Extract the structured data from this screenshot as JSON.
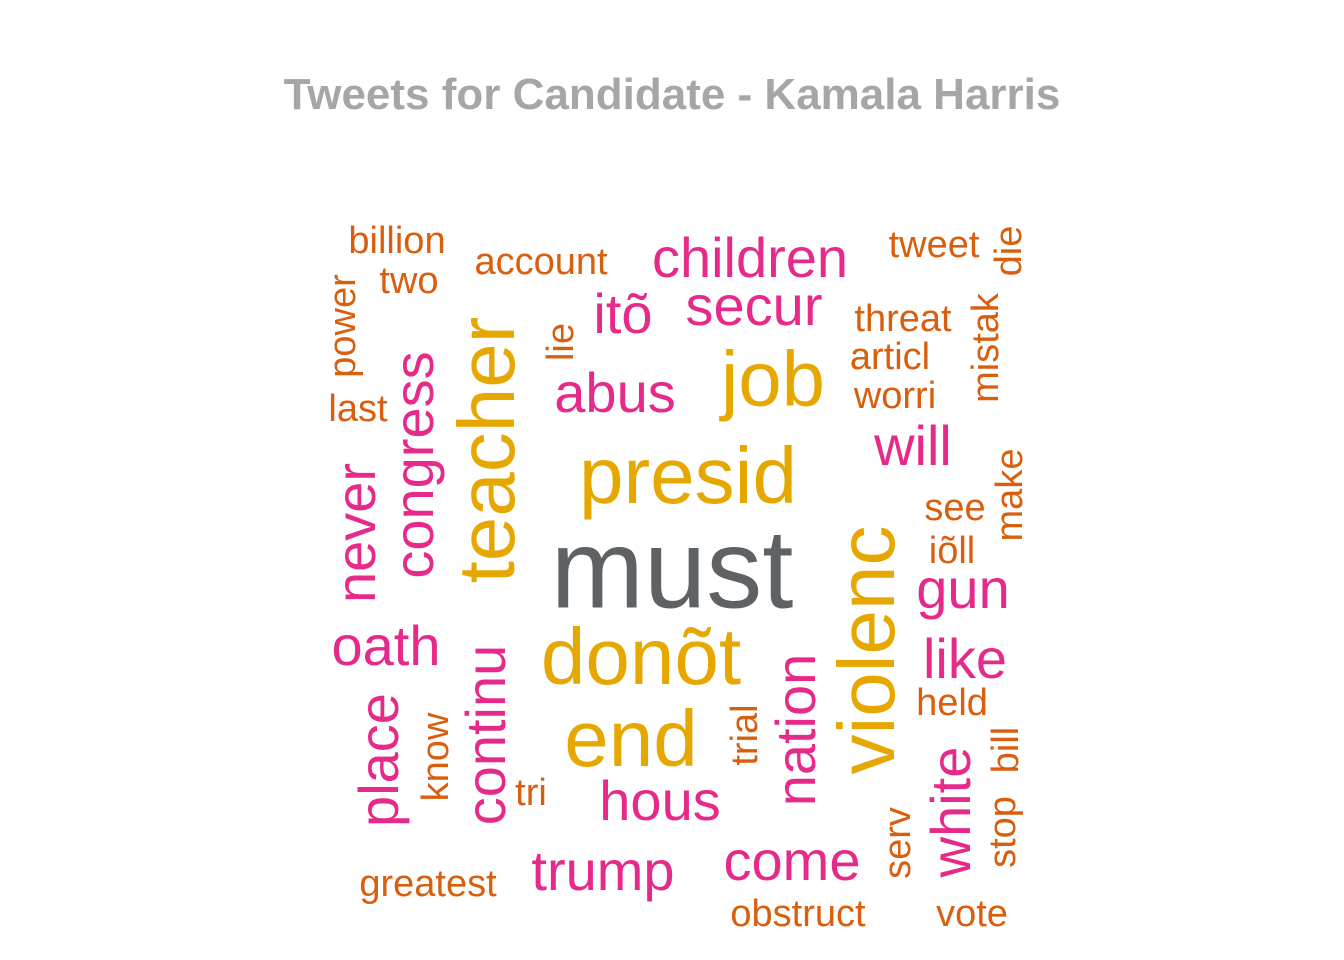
{
  "chart_data": {
    "type": "wordcloud",
    "title": "Tweets for Candidate - Kamala Harris",
    "colors": {
      "title": "#a6a6a6",
      "gray": "#5f6264",
      "gold": "#e6a800",
      "pink": "#e62a8a",
      "orange": "#d95f0e"
    },
    "words": [
      {
        "text": "must",
        "weight": 100,
        "color": "#5f6264"
      },
      {
        "text": "presid",
        "weight": 72,
        "color": "#e6a800"
      },
      {
        "text": "donõt",
        "weight": 70,
        "color": "#e6a800"
      },
      {
        "text": "end",
        "weight": 70,
        "color": "#e6a800"
      },
      {
        "text": "teacher",
        "weight": 70,
        "color": "#e6a800"
      },
      {
        "text": "violenc",
        "weight": 70,
        "color": "#e6a800"
      },
      {
        "text": "job",
        "weight": 68,
        "color": "#e6a800"
      },
      {
        "text": "congress",
        "weight": 52,
        "color": "#e62a8a"
      },
      {
        "text": "never",
        "weight": 52,
        "color": "#e62a8a"
      },
      {
        "text": "continu",
        "weight": 52,
        "color": "#e62a8a"
      },
      {
        "text": "place",
        "weight": 52,
        "color": "#e62a8a"
      },
      {
        "text": "nation",
        "weight": 52,
        "color": "#e62a8a"
      },
      {
        "text": "white",
        "weight": 52,
        "color": "#e62a8a"
      },
      {
        "text": "children",
        "weight": 52,
        "color": "#e62a8a"
      },
      {
        "text": "secur",
        "weight": 52,
        "color": "#e62a8a"
      },
      {
        "text": "abus",
        "weight": 52,
        "color": "#e62a8a"
      },
      {
        "text": "oath",
        "weight": 52,
        "color": "#e62a8a"
      },
      {
        "text": "hous",
        "weight": 52,
        "color": "#e62a8a"
      },
      {
        "text": "trump",
        "weight": 52,
        "color": "#e62a8a"
      },
      {
        "text": "come",
        "weight": 52,
        "color": "#e62a8a"
      },
      {
        "text": "gun",
        "weight": 52,
        "color": "#e62a8a"
      },
      {
        "text": "like",
        "weight": 52,
        "color": "#e62a8a"
      },
      {
        "text": "will",
        "weight": 52,
        "color": "#e62a8a"
      },
      {
        "text": "itõ",
        "weight": 52,
        "color": "#e62a8a"
      },
      {
        "text": "billion",
        "weight": 30,
        "color": "#d95f0e"
      },
      {
        "text": "two",
        "weight": 30,
        "color": "#d95f0e"
      },
      {
        "text": "power",
        "weight": 30,
        "color": "#d95f0e"
      },
      {
        "text": "last",
        "weight": 30,
        "color": "#d95f0e"
      },
      {
        "text": "account",
        "weight": 30,
        "color": "#d95f0e"
      },
      {
        "text": "lie",
        "weight": 30,
        "color": "#d95f0e"
      },
      {
        "text": "tweet",
        "weight": 30,
        "color": "#d95f0e"
      },
      {
        "text": "die",
        "weight": 30,
        "color": "#d95f0e"
      },
      {
        "text": "threat",
        "weight": 30,
        "color": "#d95f0e"
      },
      {
        "text": "articl",
        "weight": 30,
        "color": "#d95f0e"
      },
      {
        "text": "worri",
        "weight": 30,
        "color": "#d95f0e"
      },
      {
        "text": "mistak",
        "weight": 30,
        "color": "#d95f0e"
      },
      {
        "text": "make",
        "weight": 30,
        "color": "#d95f0e"
      },
      {
        "text": "see",
        "weight": 30,
        "color": "#d95f0e"
      },
      {
        "text": "iõll",
        "weight": 30,
        "color": "#d95f0e"
      },
      {
        "text": "held",
        "weight": 30,
        "color": "#d95f0e"
      },
      {
        "text": "know",
        "weight": 30,
        "color": "#d95f0e"
      },
      {
        "text": "tri",
        "weight": 30,
        "color": "#d95f0e"
      },
      {
        "text": "trial",
        "weight": 30,
        "color": "#d95f0e"
      },
      {
        "text": "serv",
        "weight": 30,
        "color": "#d95f0e"
      },
      {
        "text": "bill",
        "weight": 30,
        "color": "#d95f0e"
      },
      {
        "text": "stop",
        "weight": 30,
        "color": "#d95f0e"
      },
      {
        "text": "greatest",
        "weight": 30,
        "color": "#d95f0e"
      },
      {
        "text": "obstruct",
        "weight": 30,
        "color": "#d95f0e"
      },
      {
        "text": "vote",
        "weight": 30,
        "color": "#d95f0e"
      }
    ]
  }
}
